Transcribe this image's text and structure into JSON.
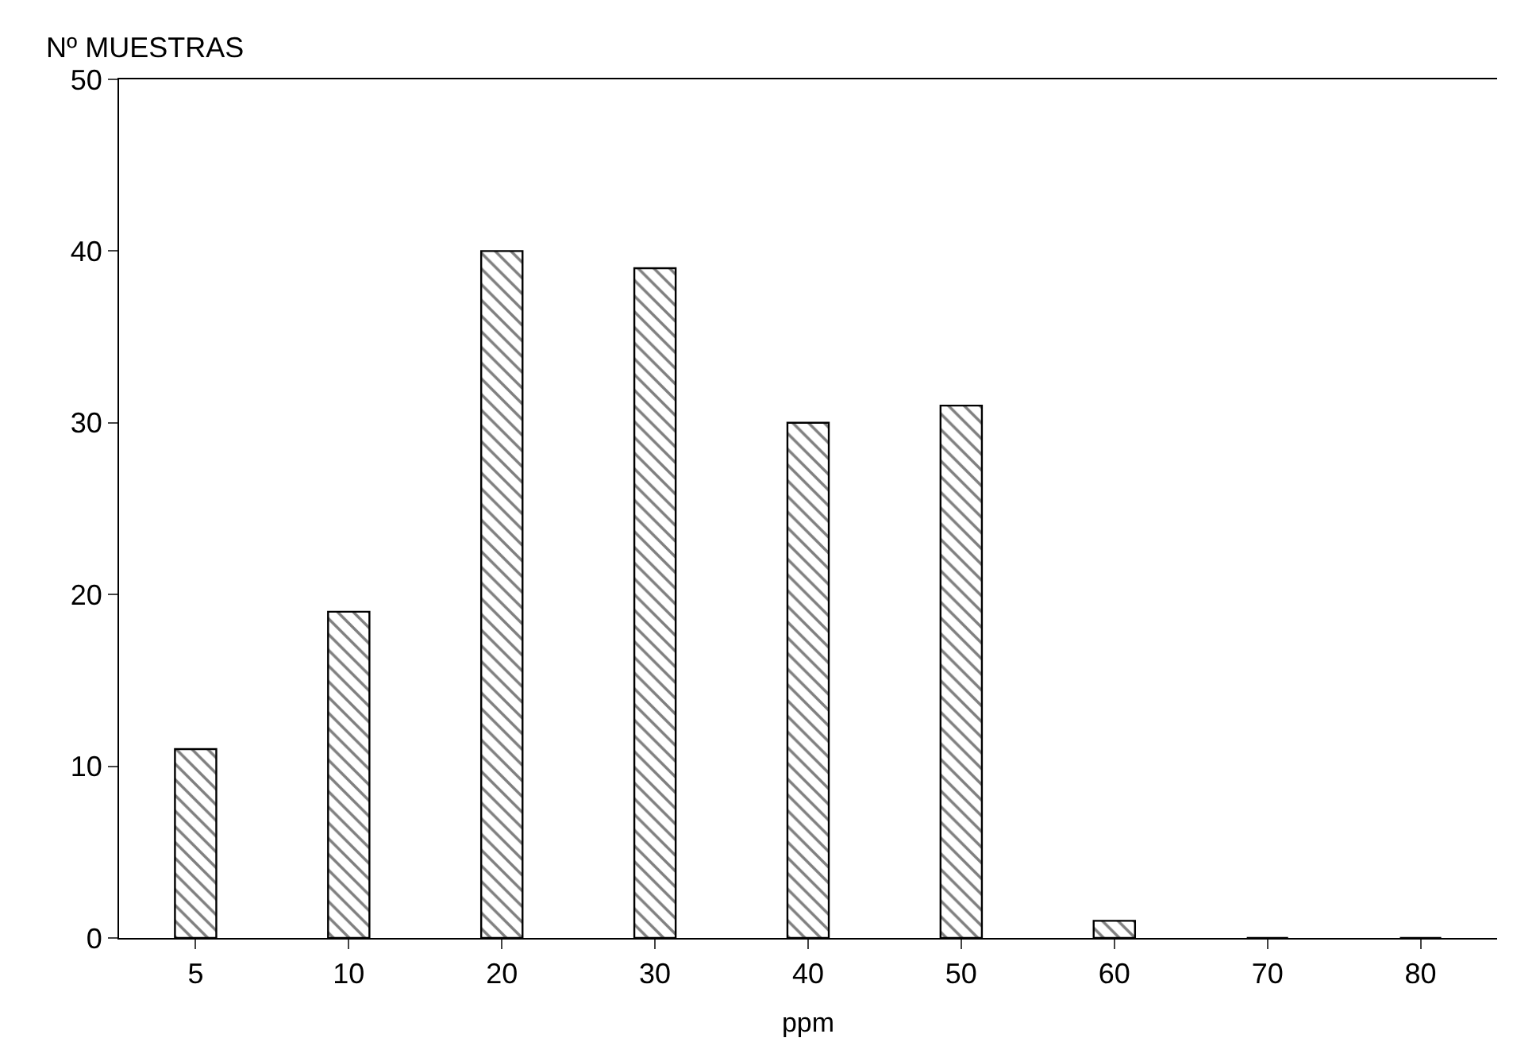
{
  "chart_data": {
    "type": "bar",
    "ylabel": "Nº MUESTRAS",
    "xlabel": "ppm",
    "categories": [
      "5",
      "10",
      "20",
      "30",
      "40",
      "50",
      "60",
      "70",
      "80"
    ],
    "values": [
      11,
      19,
      40,
      39,
      30,
      31,
      1,
      0,
      0
    ],
    "color": "#000000",
    "ylim": [
      0,
      50
    ],
    "yticks": [
      0,
      10,
      20,
      30,
      40,
      50
    ]
  }
}
